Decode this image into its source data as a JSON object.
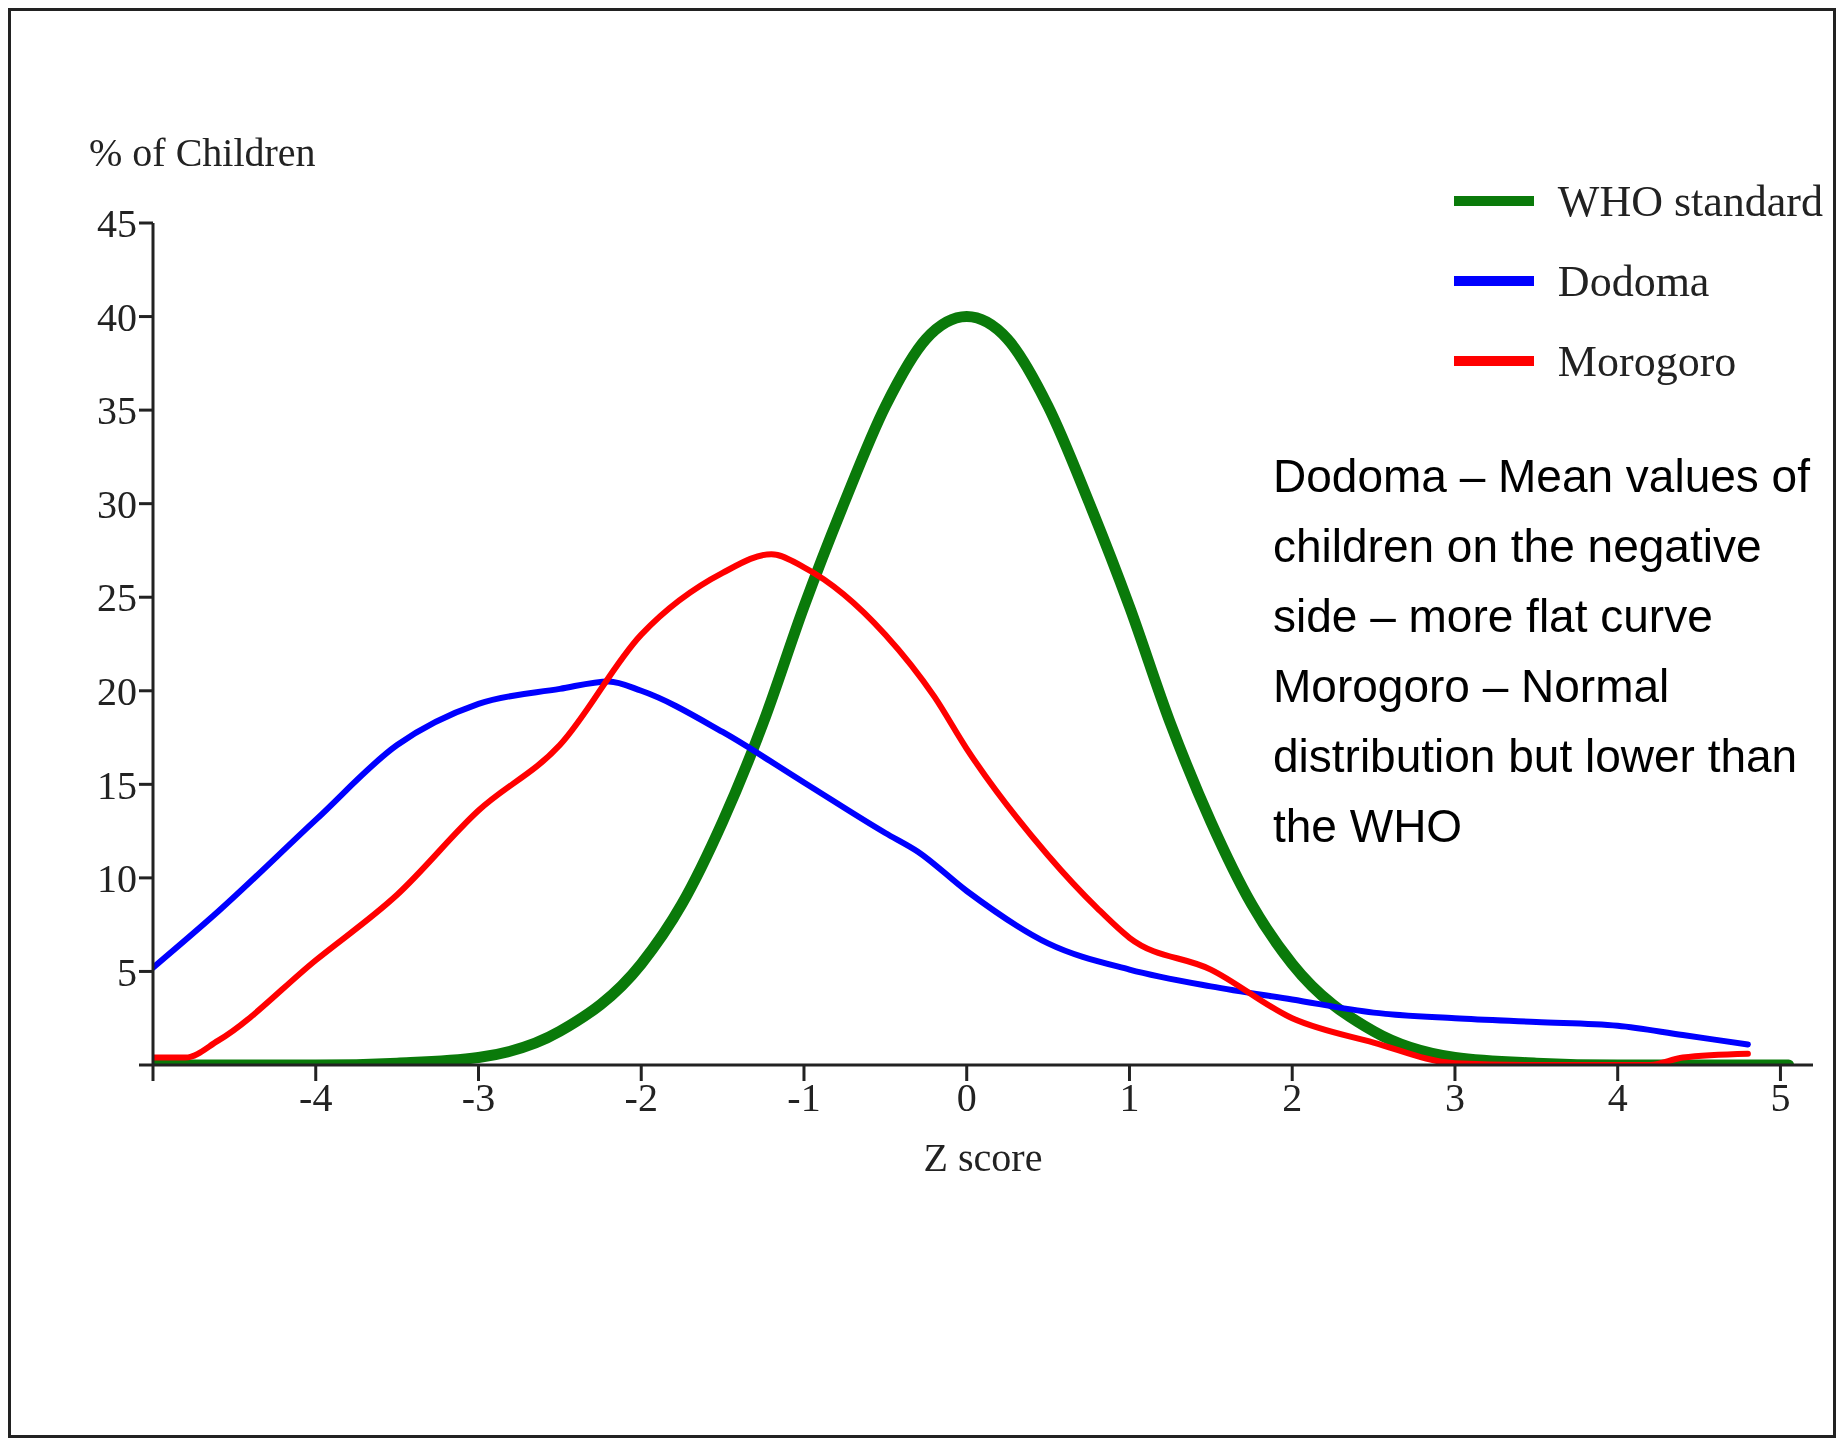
{
  "chart_data": {
    "type": "line",
    "xlabel": "Z score",
    "ylabel": "% of Children",
    "xlim": [
      -5,
      5.2
    ],
    "xticks": [
      {
        "value": -5,
        "label": null
      },
      -4,
      -3,
      -2,
      -1,
      0,
      1,
      2,
      3,
      4,
      5
    ],
    "ylim": [
      0,
      45
    ],
    "yticks": [
      {
        "value": 0,
        "label": null
      },
      5,
      10,
      15,
      20,
      25,
      30,
      35,
      40,
      45
    ],
    "grid": false,
    "legend": "top right",
    "marker": "none",
    "line_style": "solid",
    "series": [
      {
        "name": "WHO standard",
        "color": "#0a7a0a",
        "x": [
          -5,
          -4,
          -3.5,
          -3,
          -2.5,
          -2,
          -1.75,
          -1.5,
          -1.25,
          -1,
          -0.75,
          -0.5,
          -0.25,
          0,
          0.25,
          0.5,
          0.75,
          1,
          1.25,
          1.5,
          1.75,
          2,
          2.5,
          3,
          3.5,
          4,
          5.05
        ],
        "values": [
          0,
          0,
          0.1,
          0.4,
          1.8,
          5.4,
          8.6,
          13,
          18.3,
          24.5,
          30.1,
          35.2,
          38.8,
          40,
          38.8,
          35.2,
          30.1,
          24.5,
          18.3,
          13,
          8.6,
          5.4,
          1.8,
          0.4,
          0.1,
          0,
          0
        ]
      },
      {
        "name": "Dodoma",
        "color": "#0000ff",
        "x": [
          -5,
          -4.6,
          -4,
          -3.5,
          -3,
          -2.5,
          -2.2,
          -2,
          -1.5,
          -1,
          -0.5,
          -0.3,
          0,
          0.5,
          1,
          1.5,
          2,
          2.5,
          3,
          3.5,
          4,
          4.4,
          4.8
        ],
        "values": [
          5.2,
          8.2,
          13.1,
          17.1,
          19.3,
          20.1,
          20.5,
          20,
          17.8,
          15.1,
          12.4,
          11.4,
          9.3,
          6.5,
          5.1,
          4.2,
          3.5,
          2.8,
          2.5,
          2.3,
          2.1,
          1.6,
          1.1
        ]
      },
      {
        "name": "Morogoro",
        "color": "#ff0000",
        "x": [
          -5,
          -4.8,
          -4.6,
          -4,
          -3.5,
          -3,
          -2.5,
          -2,
          -1.5,
          -1.2,
          -1,
          -0.5,
          -0.2,
          0,
          0.5,
          0.8,
          1,
          1.5,
          2,
          2.5,
          3,
          3.5,
          4,
          4.2,
          4.4,
          4.8
        ],
        "values": [
          0.4,
          0.4,
          1.3,
          5.6,
          9.1,
          13.6,
          17.1,
          23,
          26.3,
          27.3,
          26.6,
          23,
          19.7,
          16.9,
          11.2,
          8.4,
          6.8,
          5.1,
          2.5,
          1.2,
          0.1,
          0,
          0,
          0,
          0.4,
          0.6
        ]
      }
    ],
    "annotations": [
      "Dodoma – Mean values of children on the negative side – more flat curve",
      "Morogoro – Normal distribution but lower than the WHO"
    ]
  }
}
